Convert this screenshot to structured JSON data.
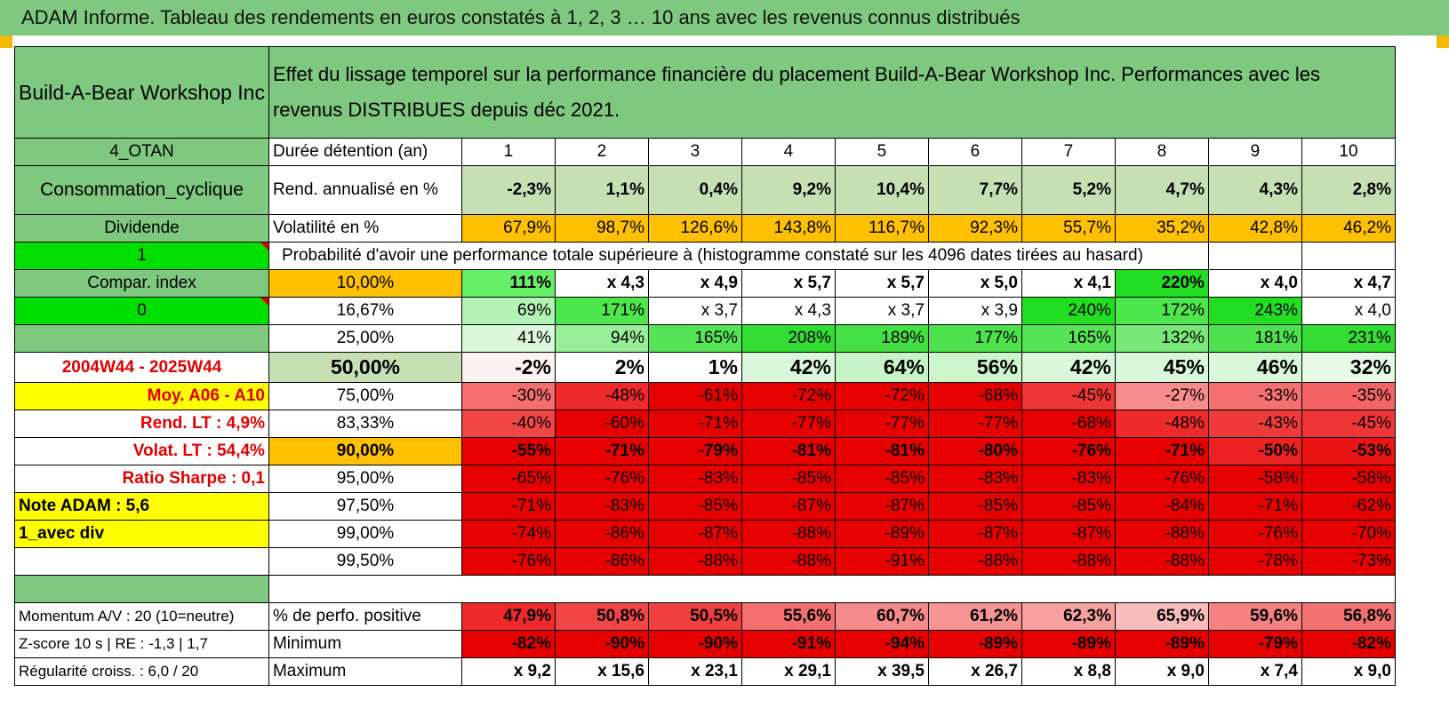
{
  "banner": "ADAM Informe. Tableau des rendements en euros constatés à 1, 2, 3 … 10 ans avec les revenus connus distribués",
  "header": {
    "company": "Build-A-Bear Workshop Inc",
    "title": "Effet du lissage temporel sur la performance financière du placement Build-A-Bear Workshop Inc. Performances avec les revenus DISTRIBUES depuis déc 2021."
  },
  "left": {
    "code": "4_OTAN",
    "sector": "Consommation_cyclique",
    "div": "Dividende",
    "flag1": "1",
    "compar": "Compar. index",
    "flag0": "0",
    "blank": "",
    "period": "2004W44 - 2025W44",
    "moy": "Moy. A06 - A10",
    "rend_lt": "Rend. LT :    4,9%",
    "volat_lt": "Volat. LT :    54,4%",
    "sharpe": "Ratio Sharpe :    0,1",
    "note": "Note ADAM : 5,6",
    "mode": "1_avec div",
    "momentum": "Momentum A/V : 20 (10=neutre)",
    "zscore": "Z-score 10 s | RE : -1,3 | 1,7",
    "regul": "Régularité croiss. : 6,0 / 20"
  },
  "labels": {
    "duree": "Durée détention (an)",
    "rend": "Rend. annualisé en %",
    "vol": "Volatilité en %",
    "proba": "Probabilité d'avoir une performance totale supérieure à (histogramme constaté sur les 4096 dates tirées au hasard)",
    "positive": "% de perfo. positive",
    "minimum": "Minimum",
    "maximum": "Maximum"
  },
  "years": [
    "1",
    "2",
    "3",
    "4",
    "5",
    "6",
    "7",
    "8",
    "9",
    "10"
  ],
  "rend": [
    "-2,3%",
    "1,1%",
    "0,4%",
    "9,2%",
    "10,4%",
    "7,7%",
    "5,2%",
    "4,7%",
    "4,3%",
    "2,8%"
  ],
  "vol": [
    "67,9%",
    "98,7%",
    "126,6%",
    "143,8%",
    "116,7%",
    "92,3%",
    "55,7%",
    "35,2%",
    "42,8%",
    "46,2%"
  ],
  "quantiles": [
    {
      "p": "10,00%",
      "v": [
        "111%",
        "x 4,3",
        "x 4,9",
        "x 5,7",
        "x 5,7",
        "x 5,0",
        "x 4,1",
        "220%",
        "x 4,0",
        "x 4,7"
      ],
      "c": [
        "#66ee66",
        "#ffffff",
        "#ffffff",
        "#ffffff",
        "#ffffff",
        "#ffffff",
        "#ffffff",
        "#22dd22",
        "#ffffff",
        "#ffffff"
      ]
    },
    {
      "p": "16,67%",
      "v": [
        "69%",
        "171%",
        "x 3,7",
        "x 4,3",
        "x 3,7",
        "x 3,9",
        "240%",
        "172%",
        "243%",
        "x 4,0"
      ],
      "c": [
        "#b4f2b4",
        "#4de64d",
        "#ffffff",
        "#ffffff",
        "#ffffff",
        "#ffffff",
        "#22dd22",
        "#4de64d",
        "#22dd22",
        "#ffffff"
      ]
    },
    {
      "p": "25,00%",
      "v": [
        "41%",
        "94%",
        "165%",
        "208%",
        "189%",
        "177%",
        "165%",
        "132%",
        "181%",
        "231%"
      ],
      "c": [
        "#dcf8dc",
        "#99ee99",
        "#55e455",
        "#33dd33",
        "#44e044",
        "#4de24d",
        "#55e455",
        "#77e877",
        "#4de24d",
        "#33dd33"
      ]
    },
    {
      "p": "50,00%",
      "v": [
        "-2%",
        "2%",
        "1%",
        "42%",
        "64%",
        "56%",
        "42%",
        "45%",
        "46%",
        "32%"
      ],
      "c": [
        "#fdf2f2",
        "#ffffff",
        "#ffffff",
        "#dcf8dc",
        "#c6f4c6",
        "#ccf5cc",
        "#dcf8dc",
        "#d9f7d9",
        "#d9f7d9",
        "#e6fae6"
      ]
    },
    {
      "p": "75,00%",
      "v": [
        "-30%",
        "-48%",
        "-61%",
        "-72%",
        "-72%",
        "-68%",
        "-45%",
        "-27%",
        "-33%",
        "-35%"
      ],
      "c": [
        "#f56e6e",
        "#ee2a2a",
        "#e60000",
        "#e60000",
        "#e60000",
        "#e60000",
        "#ef3636",
        "#f78c8c",
        "#f47070",
        "#f36464"
      ]
    },
    {
      "p": "83,33%",
      "v": [
        "-40%",
        "-60%",
        "-71%",
        "-77%",
        "-77%",
        "-77%",
        "-68%",
        "-48%",
        "-43%",
        "-45%"
      ],
      "c": [
        "#f04646",
        "#e60000",
        "#e60000",
        "#e60000",
        "#e60000",
        "#e60000",
        "#e60000",
        "#ee2a2a",
        "#ef3a3a",
        "#ef3636"
      ]
    },
    {
      "p": "90,00%",
      "v": [
        "-55%",
        "-71%",
        "-79%",
        "-81%",
        "-81%",
        "-80%",
        "-76%",
        "-71%",
        "-50%",
        "-53%"
      ],
      "c": [
        "#e60000",
        "#e60000",
        "#e60000",
        "#e60000",
        "#e60000",
        "#e60000",
        "#e60000",
        "#e60000",
        "#ec2222",
        "#ea1414"
      ]
    },
    {
      "p": "95,00%",
      "v": [
        "-65%",
        "-76%",
        "-83%",
        "-85%",
        "-85%",
        "-83%",
        "-83%",
        "-76%",
        "-58%",
        "-58%"
      ],
      "c": [
        "#e60000",
        "#e60000",
        "#e60000",
        "#e60000",
        "#e60000",
        "#e60000",
        "#e60000",
        "#e60000",
        "#e60000",
        "#e60000"
      ]
    },
    {
      "p": "97,50%",
      "v": [
        "-71%",
        "-83%",
        "-85%",
        "-87%",
        "-87%",
        "-85%",
        "-85%",
        "-84%",
        "-71%",
        "-62%"
      ],
      "c": [
        "#e60000",
        "#e60000",
        "#e60000",
        "#e60000",
        "#e60000",
        "#e60000",
        "#e60000",
        "#e60000",
        "#e60000",
        "#e60000"
      ]
    },
    {
      "p": "99,00%",
      "v": [
        "-74%",
        "-86%",
        "-87%",
        "-88%",
        "-89%",
        "-87%",
        "-87%",
        "-88%",
        "-76%",
        "-70%"
      ],
      "c": [
        "#e60000",
        "#e60000",
        "#e60000",
        "#e60000",
        "#e60000",
        "#e60000",
        "#e60000",
        "#e60000",
        "#e60000",
        "#e60000"
      ]
    },
    {
      "p": "99,50%",
      "v": [
        "-76%",
        "-86%",
        "-88%",
        "-88%",
        "-91%",
        "-88%",
        "-88%",
        "-88%",
        "-78%",
        "-73%"
      ],
      "c": [
        "#e60000",
        "#e60000",
        "#e60000",
        "#e60000",
        "#e60000",
        "#e60000",
        "#e60000",
        "#e60000",
        "#e60000",
        "#e60000"
      ]
    }
  ],
  "positive": {
    "v": [
      "47,9%",
      "50,8%",
      "50,5%",
      "55,6%",
      "60,7%",
      "61,2%",
      "62,3%",
      "65,9%",
      "59,6%",
      "56,8%"
    ],
    "c": [
      "#ee2a2a",
      "#f04646",
      "#f04040",
      "#f47070",
      "#f58a8a",
      "#f69494",
      "#f7a0a0",
      "#f9bcbc",
      "#f48282",
      "#f27272"
    ]
  },
  "minimum": {
    "v": [
      "-82%",
      "-90%",
      "-90%",
      "-91%",
      "-94%",
      "-89%",
      "-89%",
      "-89%",
      "-79%",
      "-82%"
    ],
    "c": [
      "#e60000",
      "#e60000",
      "#e60000",
      "#e60000",
      "#e60000",
      "#e60000",
      "#e60000",
      "#e60000",
      "#e60000",
      "#e60000"
    ]
  },
  "maximum": [
    "x 9,2",
    "x 15,6",
    "x 23,1",
    "x 29,1",
    "x 39,5",
    "x 26,7",
    "x 8,8",
    "x 9,0",
    "x 7,4",
    "x 9,0"
  ],
  "colors": {
    "green": "#7fc87f",
    "light_green": "#c6e0b4",
    "bright_green": "#00e000",
    "orange": "#ffc000",
    "yellow": "#ffff00",
    "red": "#e60000"
  }
}
